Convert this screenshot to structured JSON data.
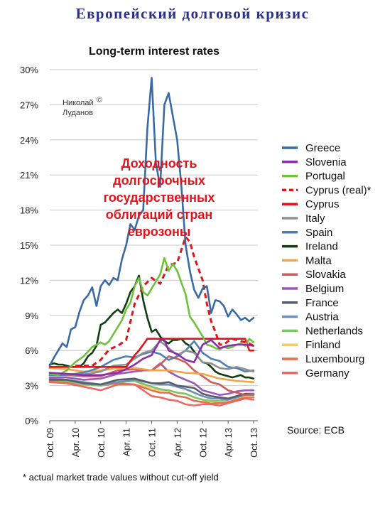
{
  "page_title": "Европейский долговой кризис",
  "chart_data": {
    "type": "line",
    "title": "Long-term interest rates",
    "ylim": [
      0,
      30
    ],
    "yticks": [
      "0%",
      "3%",
      "6%",
      "9%",
      "12%",
      "15%",
      "18%",
      "21%",
      "24%",
      "27%",
      "30%"
    ],
    "xlim": [
      0,
      49
    ],
    "xticks": [
      {
        "label": "Oct. 09",
        "x": 0
      },
      {
        "label": "Apr. 10",
        "x": 6
      },
      {
        "label": "Oct. 10",
        "x": 12
      },
      {
        "label": "Apr. 11",
        "x": 18
      },
      {
        "label": "Oct. 11",
        "x": 24
      },
      {
        "label": "Apr. 12",
        "x": 30
      },
      {
        "label": "Oct. 12",
        "x": 36
      },
      {
        "label": "Apr. 13",
        "x": 42
      },
      {
        "label": "Oct. 13",
        "x": 48
      }
    ],
    "grid": true,
    "legend_position": "right",
    "annotations": {
      "author": [
        "Николай",
        "Луданов"
      ],
      "author_mark": "©",
      "overlay_text": [
        "Доходность",
        "долгосрочных",
        "государственных",
        "облигаций стран",
        "еврозоны"
      ]
    },
    "source": "Source: ECB",
    "footnote": "* actual market trade values without cut-off yield",
    "series": [
      {
        "name": "Greece",
        "color": "#3b6aa3",
        "dash": false,
        "x": [
          0,
          1,
          2,
          3,
          4,
          5,
          6,
          7,
          8,
          9,
          10,
          11,
          12,
          13,
          14,
          15,
          16,
          17,
          18,
          19,
          20,
          21,
          22,
          23,
          24,
          25,
          26,
          27,
          28,
          29,
          30,
          31,
          32,
          33,
          34,
          35,
          36,
          37,
          38,
          39,
          40,
          41,
          42,
          43,
          44,
          45,
          46,
          47,
          48
        ],
        "y": [
          4.7,
          5.4,
          6,
          6.6,
          6.3,
          7.8,
          8,
          9.3,
          10.3,
          10.7,
          11.4,
          9.8,
          11.5,
          12,
          11.6,
          12.2,
          12,
          13.8,
          15,
          16.8,
          16.3,
          17.5,
          18,
          25,
          29.3,
          22,
          20,
          27,
          28,
          26,
          24,
          20,
          15,
          12.8,
          11.2,
          10.5,
          11.3,
          11.5,
          9.2,
          10.3,
          10.2,
          9.8,
          8.9,
          9.5,
          9.1,
          8.6,
          8.8,
          8.5,
          8.8
        ]
      },
      {
        "name": "Slovenia",
        "color": "#8a2ea8",
        "dash": false,
        "x": [
          0,
          4,
          8,
          12,
          16,
          18,
          20,
          22,
          24,
          26,
          27,
          28,
          30,
          32,
          34,
          36,
          38,
          40,
          42,
          44,
          46,
          48
        ],
        "y": [
          4.1,
          4,
          3.9,
          3.9,
          4.1,
          4.4,
          4.8,
          5.3,
          5.6,
          6.9,
          6.9,
          6,
          5.7,
          5.2,
          5,
          6.5,
          6.9,
          6.2,
          6.4,
          6.5,
          6.5,
          6.4
        ]
      },
      {
        "name": "Portugal",
        "color": "#6ec13e",
        "dash": false,
        "x": [
          0,
          2,
          4,
          6,
          8,
          10,
          12,
          13,
          14,
          15,
          16,
          17,
          18,
          19,
          20,
          21,
          22,
          23,
          24,
          25,
          26,
          27,
          28,
          29,
          30,
          31,
          32,
          33,
          34,
          35,
          36,
          37,
          38,
          39,
          40,
          41,
          42,
          43,
          44,
          45,
          46,
          47,
          48
        ],
        "y": [
          4,
          3.9,
          4.3,
          5,
          5.5,
          6.3,
          6.7,
          6.5,
          6.8,
          7.4,
          8,
          8.6,
          9.5,
          10.1,
          11.5,
          12.2,
          11,
          10.7,
          11.3,
          11.9,
          12.5,
          13.9,
          12.8,
          13.4,
          12.8,
          11.8,
          10.8,
          8.9,
          8.4,
          7.8,
          7.2,
          6.5,
          6.4,
          6.2,
          6.1,
          6.3,
          6.2,
          6.3,
          6.5,
          6.6,
          6.4,
          7,
          6.7
        ]
      },
      {
        "name": "Cyprus (real)*",
        "color": "#e0151b",
        "dash": true,
        "x": [
          6,
          8,
          10,
          12,
          14,
          16,
          18,
          20,
          22,
          24,
          26,
          28,
          30,
          32,
          33,
          34,
          35,
          36,
          37,
          38,
          39,
          40,
          41,
          42,
          43,
          44,
          45,
          46,
          47,
          48
        ],
        "y": [
          4.7,
          4.7,
          4.7,
          5.2,
          6.1,
          6.4,
          6.9,
          10,
          11.5,
          12.2,
          11.7,
          13.3,
          13.5,
          15.7,
          15.3,
          14,
          13,
          12,
          10,
          8.5,
          7.6,
          6.5,
          6.5,
          6.8,
          7,
          6.9,
          6.8,
          6.7,
          6.6,
          6.4
        ]
      },
      {
        "name": "Cyprus",
        "color": "#e0151b",
        "dash": false,
        "x": [
          0,
          3,
          6,
          9,
          12,
          14,
          16,
          18,
          20,
          21,
          22,
          23,
          24,
          26,
          28,
          30,
          32,
          34,
          36,
          38,
          40,
          42,
          44,
          46,
          47,
          48
        ],
        "y": [
          4.6,
          4.6,
          4.6,
          4.6,
          4.6,
          4.6,
          4.6,
          4.6,
          5.6,
          6,
          6.5,
          7,
          7,
          7,
          7,
          7,
          7,
          7,
          7,
          7,
          7,
          7,
          7,
          7,
          6,
          6
        ]
      },
      {
        "name": "Italy",
        "color": "#8f8f8f",
        "dash": false,
        "x": [
          0,
          3,
          6,
          9,
          12,
          15,
          18,
          20,
          22,
          24,
          26,
          28,
          30,
          32,
          34,
          36,
          38,
          40,
          42,
          44,
          46,
          48
        ],
        "y": [
          4.1,
          4,
          3.9,
          4,
          4.2,
          4.7,
          4.8,
          5.3,
          5.8,
          6,
          6.8,
          6.2,
          5.6,
          6,
          5.8,
          5,
          4.9,
          4.5,
          4.4,
          4.6,
          4.4,
          4.2
        ]
      },
      {
        "name": "Spain",
        "color": "#4e7fb3",
        "dash": false,
        "x": [
          0,
          3,
          6,
          9,
          12,
          15,
          18,
          20,
          22,
          24,
          26,
          28,
          30,
          32,
          34,
          36,
          38,
          40,
          42,
          44,
          46,
          48
        ],
        "y": [
          3.9,
          3.9,
          4,
          4.2,
          4.6,
          5.2,
          5.5,
          5.4,
          5.7,
          5.9,
          5.7,
          5.2,
          5.5,
          6,
          6.8,
          5.8,
          5.3,
          5.1,
          4.6,
          4.5,
          4.2,
          4.3
        ]
      },
      {
        "name": "Ireland",
        "color": "#0f3d0f",
        "dash": false,
        "x": [
          0,
          1,
          2,
          3,
          4,
          5,
          6,
          7,
          8,
          9,
          10,
          11,
          12,
          13,
          14,
          15,
          16,
          17,
          18,
          19,
          20,
          21,
          22,
          23,
          24,
          25,
          26,
          27,
          28,
          29,
          30,
          31,
          32,
          33,
          34,
          35,
          36,
          37,
          38,
          39,
          40,
          41,
          42,
          43,
          44,
          45,
          46,
          47,
          48
        ],
        "y": [
          4.8,
          4.9,
          4.8,
          4.8,
          4.7,
          4.6,
          4.6,
          4.6,
          4.9,
          5.5,
          5.8,
          6.4,
          8.2,
          8.4,
          8.8,
          9.2,
          9.5,
          9.2,
          10,
          11,
          11.5,
          12.4,
          10.3,
          8.8,
          7.6,
          7.8,
          7.2,
          6.8,
          6.6,
          6.9,
          6.9,
          7,
          6.6,
          6.4,
          5.9,
          5.4,
          5,
          4.9,
          4.6,
          4.2,
          4,
          3.9,
          3.8,
          3.7,
          3.8,
          3.9,
          3.7,
          3.7,
          3.6
        ]
      },
      {
        "name": "Malta",
        "color": "#f3a449",
        "dash": false,
        "x": [
          0,
          4,
          8,
          12,
          16,
          20,
          24,
          28,
          32,
          36,
          40,
          44,
          48
        ],
        "y": [
          4.5,
          4.4,
          4.2,
          4.3,
          4.5,
          4.5,
          4.3,
          4.3,
          4.1,
          4,
          3.6,
          3.4,
          3.3
        ]
      },
      {
        "name": "Slovakia",
        "color": "#d15b56",
        "dash": false,
        "x": [
          0,
          4,
          8,
          12,
          16,
          20,
          24,
          26,
          28,
          30,
          32,
          34,
          36,
          38,
          40,
          42,
          44,
          46,
          48
        ],
        "y": [
          3.9,
          3.9,
          3.8,
          3.8,
          4.3,
          4.4,
          4.3,
          4.8,
          5.5,
          5.3,
          5,
          4.3,
          3.8,
          3.3,
          3.1,
          2.6,
          2.4,
          2.2,
          2.3
        ]
      },
      {
        "name": "Belgium",
        "color": "#9b59b6",
        "dash": false,
        "x": [
          0,
          4,
          8,
          12,
          16,
          20,
          22,
          24,
          26,
          28,
          30,
          32,
          34,
          36,
          38,
          40,
          42,
          44,
          46,
          48
        ],
        "y": [
          3.7,
          3.7,
          3.5,
          3.6,
          4,
          4.2,
          4.3,
          4.3,
          4.9,
          4.2,
          3.8,
          3.5,
          3.2,
          2.6,
          2.4,
          2.2,
          2.3,
          2.5,
          2.6,
          2.6
        ]
      },
      {
        "name": "France",
        "color": "#5a5a6e",
        "dash": false,
        "x": [
          0,
          4,
          8,
          12,
          16,
          20,
          24,
          26,
          28,
          30,
          32,
          34,
          36,
          38,
          40,
          42,
          44,
          46,
          48
        ],
        "y": [
          3.5,
          3.5,
          3.2,
          3.1,
          3.5,
          3.6,
          3.2,
          3.2,
          3.3,
          3,
          2.9,
          2.8,
          2.3,
          2.1,
          2,
          1.9,
          2.1,
          2.3,
          2.3
        ]
      },
      {
        "name": "Austria",
        "color": "#6f8fb0",
        "dash": false,
        "x": [
          0,
          4,
          8,
          12,
          16,
          20,
          24,
          26,
          28,
          30,
          32,
          34,
          36,
          38,
          40,
          42,
          44,
          46,
          48
        ],
        "y": [
          3.6,
          3.5,
          3.3,
          3.1,
          3.3,
          3.5,
          3.2,
          3.1,
          3.1,
          2.9,
          2.7,
          2.4,
          2.1,
          1.9,
          1.9,
          1.8,
          2,
          2.2,
          2.2
        ]
      },
      {
        "name": "Netherlands",
        "color": "#7cc66a",
        "dash": false,
        "x": [
          0,
          4,
          8,
          12,
          16,
          20,
          24,
          26,
          28,
          30,
          32,
          34,
          36,
          38,
          40,
          42,
          44,
          46,
          48
        ],
        "y": [
          3.5,
          3.4,
          3.1,
          3,
          3.3,
          3.4,
          2.9,
          2.7,
          2.6,
          2.4,
          2.3,
          2,
          1.8,
          1.7,
          1.7,
          1.8,
          2,
          2.2,
          2.2
        ]
      },
      {
        "name": "Finland",
        "color": "#f5c96a",
        "dash": false,
        "x": [
          0,
          4,
          8,
          12,
          16,
          20,
          24,
          26,
          28,
          30,
          32,
          34,
          36,
          38,
          40,
          42,
          44,
          46,
          48
        ],
        "y": [
          3.5,
          3.4,
          3.1,
          3,
          3.3,
          3.4,
          2.7,
          2.6,
          2.6,
          2.4,
          2.3,
          2,
          1.8,
          1.6,
          1.7,
          1.8,
          2,
          2.1,
          2.1
        ]
      },
      {
        "name": "Luxembourg",
        "color": "#e0704d",
        "dash": false,
        "x": [
          0,
          4,
          8,
          12,
          16,
          20,
          24,
          26,
          28,
          30,
          32,
          34,
          36,
          38,
          40,
          42,
          44,
          46,
          48
        ],
        "y": [
          3.4,
          3.3,
          3.1,
          3,
          3.2,
          3.1,
          2.6,
          2.4,
          2.4,
          2.1,
          2,
          1.7,
          1.6,
          1.5,
          1.5,
          1.6,
          1.8,
          2,
          2
        ]
      },
      {
        "name": "Germany",
        "color": "#f06666",
        "dash": false,
        "x": [
          0,
          4,
          8,
          12,
          16,
          20,
          22,
          24,
          26,
          28,
          30,
          32,
          34,
          36,
          38,
          40,
          42,
          44,
          46,
          48
        ],
        "y": [
          3.3,
          3.2,
          2.9,
          2.6,
          3.1,
          3.1,
          2.6,
          2.1,
          2,
          1.8,
          1.7,
          1.4,
          1.3,
          1.4,
          1.4,
          1.3,
          1.5,
          1.7,
          1.9,
          1.8
        ]
      }
    ]
  }
}
